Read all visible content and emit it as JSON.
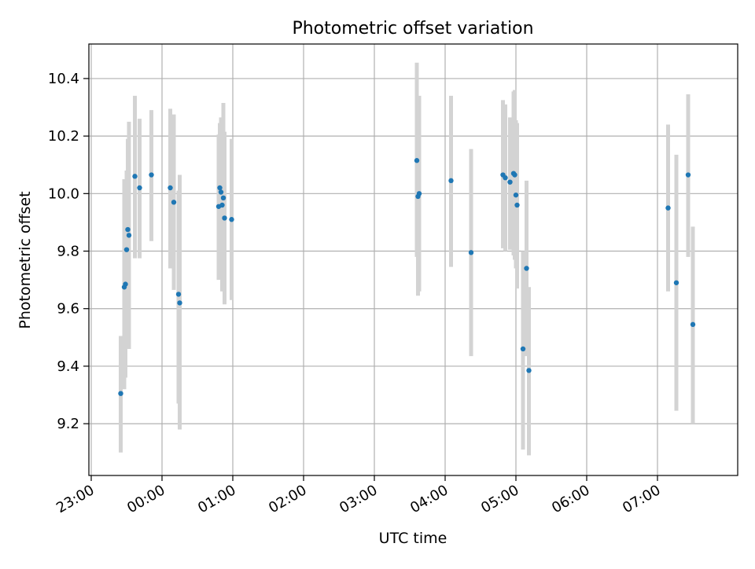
{
  "chart_data": {
    "type": "scatter",
    "title": "Photometric offset variation",
    "xlabel": "UTC time",
    "ylabel": "Photometric offset",
    "x_ticks": [
      "23:00",
      "00:00",
      "01:00",
      "02:00",
      "03:00",
      "04:00",
      "05:00",
      "06:00",
      "07:00"
    ],
    "y_ticks": [
      "9.2",
      "9.4",
      "9.6",
      "9.8",
      "10.0",
      "10.2",
      "10.4"
    ],
    "ylim": [
      9.02,
      10.52
    ],
    "xlim": [
      "22:58",
      "08:08"
    ],
    "grid": true,
    "colors": {
      "point": "#1f77b4",
      "errorbar": "#d3d3d3",
      "grid": "#b0b0b0"
    },
    "series": [
      {
        "points": [
          {
            "t": "23:25",
            "y": 9.305,
            "lo": 9.1,
            "hi": 9.505
          },
          {
            "t": "23:28",
            "y": 9.675,
            "lo": 9.32,
            "hi": 10.05
          },
          {
            "t": "23:29",
            "y": 9.685,
            "lo": 9.36,
            "hi": 10.01
          },
          {
            "t": "23:30",
            "y": 9.805,
            "lo": 9.54,
            "hi": 10.08
          },
          {
            "t": "23:31",
            "y": 9.875,
            "lo": 9.56,
            "hi": 10.19
          },
          {
            "t": "23:32",
            "y": 9.855,
            "lo": 9.46,
            "hi": 10.25
          },
          {
            "t": "23:37",
            "y": 10.06,
            "lo": 9.775,
            "hi": 10.34
          },
          {
            "t": "23:41",
            "y": 10.02,
            "lo": 9.775,
            "hi": 10.26
          },
          {
            "t": "23:51",
            "y": 10.065,
            "lo": 9.835,
            "hi": 10.29
          },
          {
            "t": "00:07",
            "y": 10.02,
            "lo": 9.74,
            "hi": 10.295
          },
          {
            "t": "00:10",
            "y": 9.97,
            "lo": 9.665,
            "hi": 10.275
          },
          {
            "t": "00:14",
            "y": 9.65,
            "lo": 9.27,
            "hi": 10.01
          },
          {
            "t": "00:15",
            "y": 9.62,
            "lo": 9.18,
            "hi": 10.065
          },
          {
            "t": "00:48",
            "y": 9.955,
            "lo": 9.7,
            "hi": 10.205
          },
          {
            "t": "00:49",
            "y": 10.02,
            "lo": 9.78,
            "hi": 10.245
          },
          {
            "t": "00:50",
            "y": 10.005,
            "lo": 9.755,
            "hi": 10.265
          },
          {
            "t": "00:51",
            "y": 9.96,
            "lo": 9.66,
            "hi": 10.255
          },
          {
            "t": "00:52",
            "y": 9.985,
            "lo": 9.66,
            "hi": 10.315
          },
          {
            "t": "00:53",
            "y": 9.915,
            "lo": 9.615,
            "hi": 10.215
          },
          {
            "t": "00:59",
            "y": 9.91,
            "lo": 9.63,
            "hi": 10.19
          },
          {
            "t": "03:36",
            "y": 10.115,
            "lo": 9.78,
            "hi": 10.455
          },
          {
            "t": "03:37",
            "y": 9.99,
            "lo": 9.645,
            "hi": 10.335
          },
          {
            "t": "03:38",
            "y": 10.0,
            "lo": 9.66,
            "hi": 10.34
          },
          {
            "t": "04:05",
            "y": 10.045,
            "lo": 9.745,
            "hi": 10.34
          },
          {
            "t": "04:22",
            "y": 9.795,
            "lo": 9.435,
            "hi": 10.155
          },
          {
            "t": "04:49",
            "y": 10.065,
            "lo": 9.81,
            "hi": 10.325
          },
          {
            "t": "04:51",
            "y": 10.055,
            "lo": 9.8,
            "hi": 10.31
          },
          {
            "t": "04:55",
            "y": 10.04,
            "lo": 9.805,
            "hi": 10.265
          },
          {
            "t": "04:58",
            "y": 10.07,
            "lo": 9.785,
            "hi": 10.355
          },
          {
            "t": "04:59",
            "y": 10.065,
            "lo": 9.77,
            "hi": 10.36
          },
          {
            "t": "05:00",
            "y": 9.995,
            "lo": 9.74,
            "hi": 10.255
          },
          {
            "t": "05:01",
            "y": 9.96,
            "lo": 9.67,
            "hi": 10.245
          },
          {
            "t": "05:06",
            "y": 9.46,
            "lo": 9.11,
            "hi": 9.8
          },
          {
            "t": "05:09",
            "y": 9.74,
            "lo": 9.435,
            "hi": 10.045
          },
          {
            "t": "05:11",
            "y": 9.385,
            "lo": 9.09,
            "hi": 9.675
          },
          {
            "t": "07:09",
            "y": 9.95,
            "lo": 9.66,
            "hi": 10.24
          },
          {
            "t": "07:16",
            "y": 9.69,
            "lo": 9.245,
            "hi": 10.135
          },
          {
            "t": "07:26",
            "y": 10.065,
            "lo": 9.78,
            "hi": 10.345
          },
          {
            "t": "07:30",
            "y": 9.545,
            "lo": 9.2,
            "hi": 9.885
          }
        ]
      }
    ]
  }
}
